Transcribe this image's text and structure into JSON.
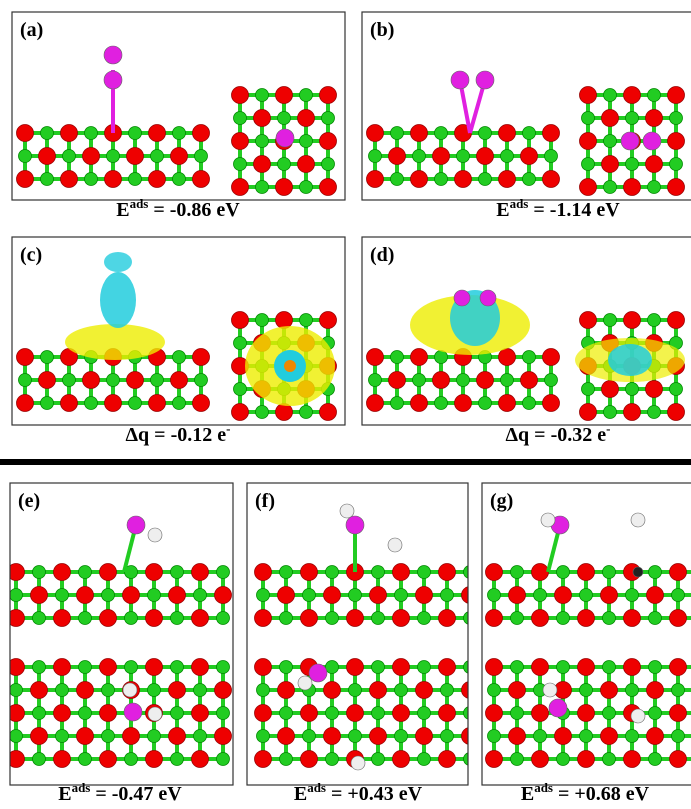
{
  "panels": [
    {
      "label": "(a)",
      "caption": [
        {
          "text": "E"
        },
        {
          "sup": "ads"
        },
        {
          "text": " = -0.86 eV"
        }
      ]
    },
    {
      "label": "(b)",
      "caption": [
        {
          "text": "E"
        },
        {
          "sup": "ads"
        },
        {
          "text": " = -1.14 eV"
        }
      ]
    },
    {
      "label": "(c)",
      "caption": [
        {
          "text": "Δq = -0.12 e"
        },
        {
          "sup": "-"
        }
      ]
    },
    {
      "label": "(d)",
      "caption": [
        {
          "text": "Δq = -0.32 e"
        },
        {
          "sup": "-"
        }
      ]
    },
    {
      "label": "(e)",
      "caption": [
        {
          "text": "E"
        },
        {
          "sup": "ads"
        },
        {
          "text": " = -0.47 eV"
        }
      ]
    },
    {
      "label": "(f)",
      "caption": [
        {
          "text": "E"
        },
        {
          "sup": "ads"
        },
        {
          "text": " = +0.43 eV"
        }
      ]
    },
    {
      "label": "(g)",
      "caption": [
        {
          "text": "E"
        },
        {
          "sup": "ads"
        },
        {
          "text": " = +0.68 eV"
        }
      ]
    }
  ]
}
